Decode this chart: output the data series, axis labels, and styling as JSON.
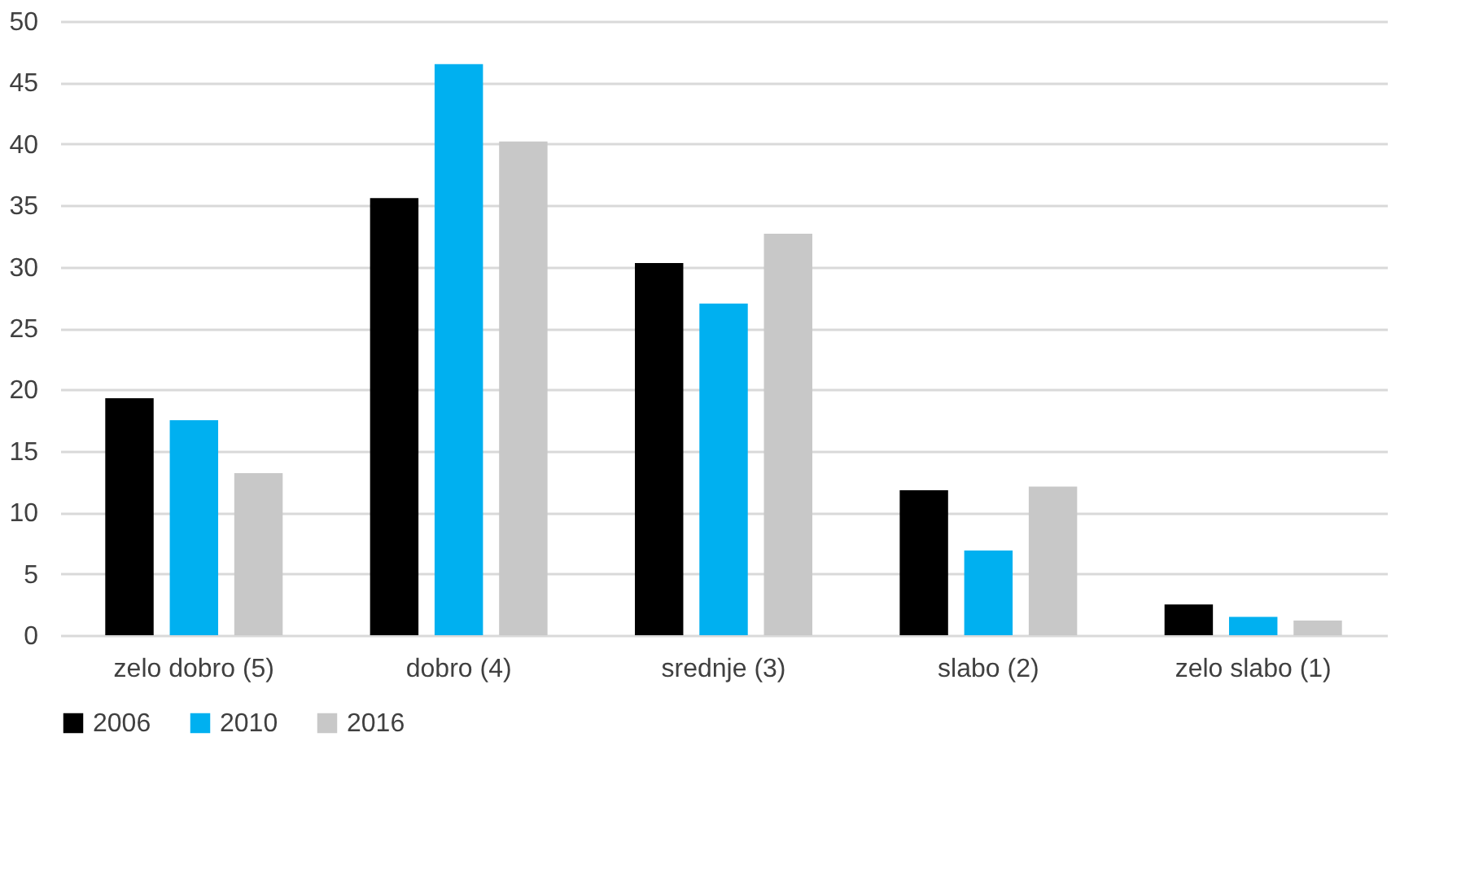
{
  "chart_data": {
    "type": "bar",
    "categories": [
      "zelo dobro (5)",
      "dobro (4)",
      "srednje (3)",
      "slabo (2)",
      "zelo slabo (1)"
    ],
    "series": [
      {
        "name": "2006",
        "color": "#000000",
        "values": [
          19.3,
          35.6,
          30.3,
          11.8,
          2.5
        ]
      },
      {
        "name": "2010",
        "color": "#00b0f0",
        "values": [
          17.5,
          46.5,
          27.0,
          6.9,
          1.5
        ]
      },
      {
        "name": "2016",
        "color": "#c8c8c8",
        "values": [
          13.2,
          40.2,
          32.7,
          12.1,
          1.2
        ]
      }
    ],
    "ylim": [
      0,
      50
    ],
    "yticks": [
      0,
      5,
      10,
      15,
      20,
      25,
      30,
      35,
      40,
      45,
      50
    ],
    "grid": "y",
    "legend": "bottom"
  }
}
